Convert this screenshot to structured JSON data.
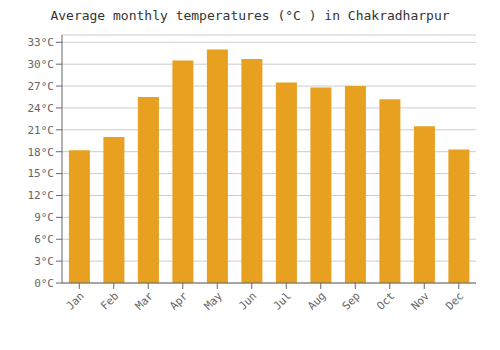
{
  "chart_data": {
    "type": "bar",
    "title": "Average monthly temperatures (°C ) in Chakradharpur",
    "categories": [
      "Jan",
      "Feb",
      "Mar",
      "Apr",
      "May",
      "Jun",
      "Jul",
      "Aug",
      "Sep",
      "Oct",
      "Nov",
      "Dec"
    ],
    "values": [
      18.2,
      20.0,
      25.5,
      30.5,
      32.0,
      30.7,
      27.5,
      26.8,
      27.0,
      25.2,
      21.5,
      18.3
    ],
    "color": "#E8A020",
    "ylim": [
      0,
      34
    ],
    "yticks": [
      {
        "value": 0,
        "label": "0°C"
      },
      {
        "value": 3,
        "label": "3°C"
      },
      {
        "value": 6,
        "label": "6°C"
      },
      {
        "value": 9,
        "label": "9°C"
      },
      {
        "value": 12,
        "label": "12°C"
      },
      {
        "value": 15,
        "label": "15°C"
      },
      {
        "value": 18,
        "label": "18°C"
      },
      {
        "value": 21,
        "label": "21°C"
      },
      {
        "value": 24,
        "label": "24°C"
      },
      {
        "value": 27,
        "label": "27°C"
      },
      {
        "value": 30,
        "label": "30°C"
      },
      {
        "value": 33,
        "label": "33°C"
      }
    ],
    "grid": true
  }
}
